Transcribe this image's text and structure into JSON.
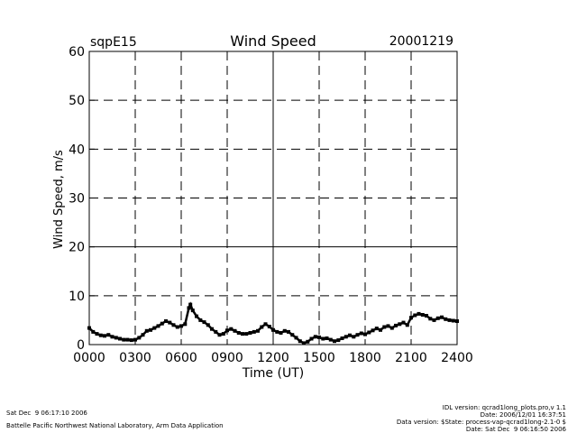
{
  "header": {
    "site": "sqpE15",
    "title": "Wind Speed",
    "date": "20001219"
  },
  "footer": {
    "left_line1": "Sat Dec  9 06:17:10 2006",
    "left_line2": "Battelle Pacific Northwest National Laboratory, Arm Data Application",
    "right_line1": "IDL version: qcrad1long_plots.pro,v 1.1",
    "right_line2": "Date: 2006/12/01 16:37:51",
    "right_line3": "Data version: $State: process-vap-qcrad1long-2.1-0 $",
    "right_line4": "Date: Sat Dec  9 06:16:50 2006"
  },
  "chart_data": {
    "type": "scatter",
    "title": "Wind Speed",
    "xlabel": "Time (UT)",
    "ylabel": "Wind Speed, m/s",
    "xlim": [
      0,
      24
    ],
    "ylim": [
      0,
      60
    ],
    "x_ticks": [
      "0000",
      "0300",
      "0600",
      "0900",
      "1200",
      "1500",
      "1800",
      "2100",
      "2400"
    ],
    "y_ticks": [
      "0",
      "10",
      "20",
      "30",
      "40",
      "50",
      "60"
    ],
    "grid": true,
    "x_unit": "hours UT",
    "points": [
      [
        0.0,
        3.4
      ],
      [
        0.25,
        2.6
      ],
      [
        0.5,
        2.2
      ],
      [
        0.75,
        1.9
      ],
      [
        1.0,
        1.8
      ],
      [
        1.25,
        2.0
      ],
      [
        1.5,
        1.6
      ],
      [
        1.75,
        1.4
      ],
      [
        2.0,
        1.2
      ],
      [
        2.25,
        1.0
      ],
      [
        2.5,
        1.0
      ],
      [
        2.75,
        0.9
      ],
      [
        3.0,
        1.0
      ],
      [
        3.25,
        1.4
      ],
      [
        3.5,
        2.0
      ],
      [
        3.75,
        2.8
      ],
      [
        4.0,
        3.0
      ],
      [
        4.25,
        3.4
      ],
      [
        4.5,
        3.8
      ],
      [
        4.75,
        4.3
      ],
      [
        5.0,
        4.8
      ],
      [
        5.25,
        4.5
      ],
      [
        5.5,
        4.0
      ],
      [
        5.75,
        3.6
      ],
      [
        6.0,
        3.8
      ],
      [
        6.25,
        4.2
      ],
      [
        6.5,
        7.5
      ],
      [
        6.6,
        8.2
      ],
      [
        6.75,
        7.0
      ],
      [
        7.0,
        5.8
      ],
      [
        7.25,
        5.0
      ],
      [
        7.5,
        4.6
      ],
      [
        7.75,
        4.0
      ],
      [
        8.0,
        3.2
      ],
      [
        8.25,
        2.6
      ],
      [
        8.5,
        2.0
      ],
      [
        8.75,
        2.2
      ],
      [
        9.0,
        2.9
      ],
      [
        9.25,
        3.2
      ],
      [
        9.5,
        2.8
      ],
      [
        9.75,
        2.4
      ],
      [
        10.0,
        2.2
      ],
      [
        10.25,
        2.2
      ],
      [
        10.5,
        2.4
      ],
      [
        10.75,
        2.6
      ],
      [
        11.0,
        2.8
      ],
      [
        11.25,
        3.6
      ],
      [
        11.5,
        4.2
      ],
      [
        11.75,
        3.7
      ],
      [
        12.0,
        3.0
      ],
      [
        12.25,
        2.6
      ],
      [
        12.5,
        2.4
      ],
      [
        12.75,
        2.8
      ],
      [
        13.0,
        2.6
      ],
      [
        13.25,
        2.0
      ],
      [
        13.5,
        1.4
      ],
      [
        13.75,
        0.7
      ],
      [
        14.0,
        0.3
      ],
      [
        14.25,
        0.6
      ],
      [
        14.5,
        1.2
      ],
      [
        14.75,
        1.6
      ],
      [
        15.0,
        1.5
      ],
      [
        15.25,
        1.2
      ],
      [
        15.5,
        1.3
      ],
      [
        15.75,
        1.0
      ],
      [
        16.0,
        0.7
      ],
      [
        16.25,
        0.9
      ],
      [
        16.5,
        1.3
      ],
      [
        16.75,
        1.6
      ],
      [
        17.0,
        1.9
      ],
      [
        17.25,
        1.6
      ],
      [
        17.5,
        2.0
      ],
      [
        17.75,
        2.3
      ],
      [
        18.0,
        2.1
      ],
      [
        18.25,
        2.5
      ],
      [
        18.5,
        2.9
      ],
      [
        18.75,
        3.3
      ],
      [
        19.0,
        3.0
      ],
      [
        19.25,
        3.6
      ],
      [
        19.5,
        3.8
      ],
      [
        19.75,
        3.4
      ],
      [
        20.0,
        3.9
      ],
      [
        20.25,
        4.2
      ],
      [
        20.5,
        4.5
      ],
      [
        20.75,
        4.0
      ],
      [
        21.0,
        5.5
      ],
      [
        21.25,
        6.0
      ],
      [
        21.5,
        6.3
      ],
      [
        21.75,
        6.1
      ],
      [
        22.0,
        5.9
      ],
      [
        22.25,
        5.3
      ],
      [
        22.5,
        5.0
      ],
      [
        22.75,
        5.4
      ],
      [
        23.0,
        5.6
      ],
      [
        23.25,
        5.2
      ],
      [
        23.5,
        5.0
      ],
      [
        23.75,
        4.9
      ],
      [
        24.0,
        4.8
      ]
    ]
  }
}
